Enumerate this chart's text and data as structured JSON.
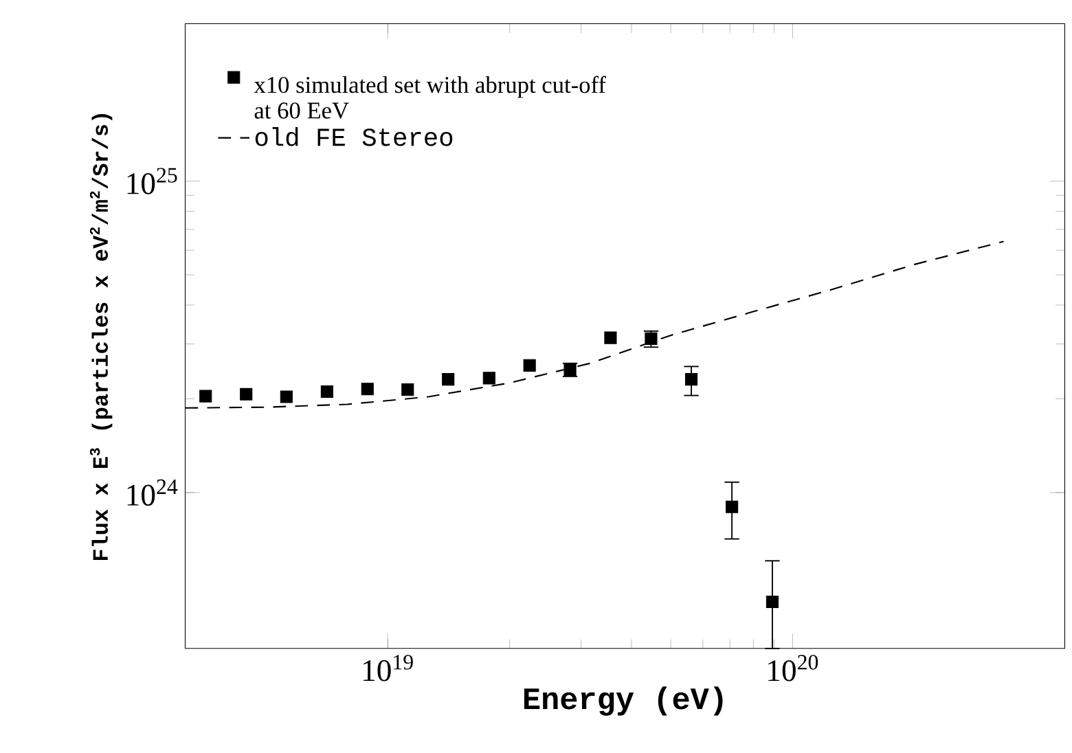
{
  "chart_data": {
    "type": "scatter",
    "xlabel": "Energy (eV)",
    "ylabel": "Flux x E$^{3}$ (particles x eV$^{2}$/m$^{2}$/Sr/s)",
    "log": "xy",
    "xlim": [
      3.16e+18,
      4.7e+20
    ],
    "ylim": [
      3.16e+23,
      3.2e+25
    ],
    "xticks": [
      {
        "value": 1e+19,
        "label": "10$^{19}$"
      },
      {
        "value": 1e+20,
        "label": "10$^{20}$"
      }
    ],
    "yticks": [
      {
        "value": 1e+24,
        "label": "10$^{24}$"
      },
      {
        "value": 1e+25,
        "label": "10$^{25}$"
      }
    ],
    "legend": "top left",
    "grid": false,
    "series": [
      {
        "name": "x10 simulated set with abrupt cut-off at 60 EeV",
        "marker": "square",
        "color": "#000000",
        "x": [
          3.55e+18,
          4.47e+18,
          5.62e+18,
          7.08e+18,
          8.91e+18,
          1.12e+19,
          1.41e+19,
          1.78e+19,
          2.24e+19,
          2.82e+19,
          3.55e+19,
          4.47e+19,
          5.62e+19,
          7.08e+19,
          8.91e+19
        ],
        "values": [
          2.04e+24,
          2.07e+24,
          2.03e+24,
          2.11e+24,
          2.15e+24,
          2.14e+24,
          2.31e+24,
          2.33e+24,
          2.56e+24,
          2.48e+24,
          3.14e+24,
          3.12e+24,
          2.31e+24,
          9e+23,
          4.46e+23
        ],
        "errors": [
          null,
          null,
          null,
          null,
          null,
          null,
          null,
          null,
          null,
          [
            2.36e+24,
            2.6e+24
          ],
          null,
          [
            2.93e+24,
            3.3e+24
          ],
          [
            2.05e+24,
            2.54e+24
          ],
          [
            7.1e+23,
            1.08e+24
          ],
          [
            3.16e+23,
            6.04e+23
          ]
        ]
      },
      {
        "name": "old FE Stereo",
        "type": "line",
        "line_style": "dashed",
        "marker": "none",
        "color": "#000000",
        "x": [
          3.16e+18,
          5.01e+18,
          7.94e+18,
          1.26e+19,
          2e+19,
          3.16e+19,
          5.01e+19,
          7.94e+19,
          1.26e+20,
          2e+20,
          3.32e+20
        ],
        "values": [
          1.87e+24,
          1.88e+24,
          1.92e+24,
          2.03e+24,
          2.25e+24,
          2.6e+24,
          3.2e+24,
          3.8e+24,
          4.5e+24,
          5.4e+24,
          6.4e+24
        ]
      }
    ]
  }
}
